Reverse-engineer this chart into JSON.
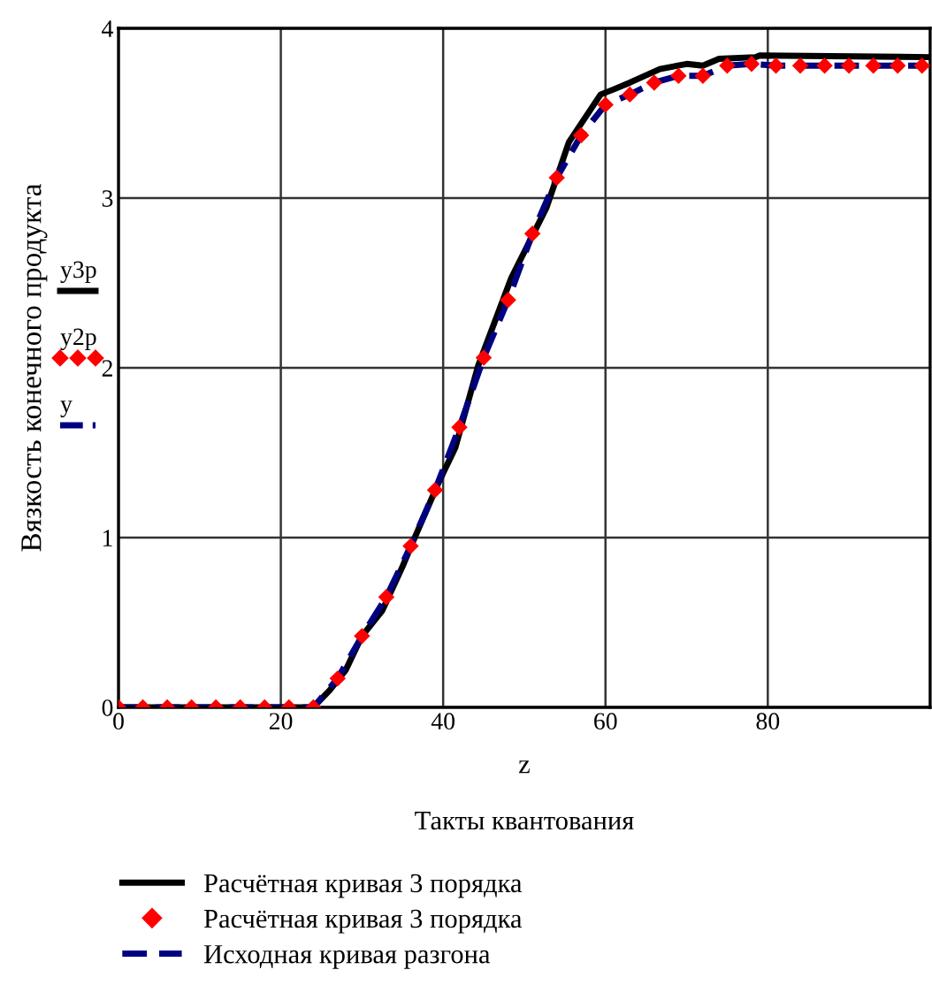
{
  "chart_data": {
    "type": "line",
    "xlabel": "z\n\nТакты квантования",
    "ylabel": "Вязкость конечного продукта",
    "annotations": [
      "y3p",
      "y2p",
      "y"
    ],
    "xlim": [
      0,
      100
    ],
    "xticks": [
      0,
      20,
      40,
      60,
      80
    ],
    "ylim": [
      0,
      4
    ],
    "yticks": [
      0,
      1,
      2,
      3,
      4
    ],
    "grid": true,
    "legend": "bottom",
    "series": [
      {
        "name": "Расчётная кривая 3 порядка",
        "color": "#000000",
        "line_style": "solid",
        "marker": "none",
        "x": [
          0,
          24,
          26,
          28,
          30,
          32.5,
          35,
          36.5,
          39.4,
          41.5,
          44.3,
          48.4,
          52.7,
          55.5,
          59.4,
          61,
          63,
          66.7,
          70,
          72,
          74,
          78.5,
          79,
          100
        ],
        "values": [
          0,
          0,
          0.1,
          0.22,
          0.42,
          0.57,
          0.83,
          1.0,
          1.32,
          1.53,
          2.01,
          2.53,
          2.94,
          3.33,
          3.61,
          3.64,
          3.68,
          3.76,
          3.79,
          3.78,
          3.82,
          3.83,
          3.84,
          3.83
        ]
      },
      {
        "name": "Расчётная кривая 3 порядка",
        "color": "#ff0000",
        "type": "scatter",
        "marker": "diamond",
        "x": [
          0,
          3,
          6,
          9,
          12,
          15,
          18,
          21,
          24,
          27,
          30,
          33,
          36,
          39,
          42,
          45,
          48,
          51,
          54,
          57,
          60,
          63,
          66,
          69,
          72,
          75,
          78,
          81,
          84,
          87,
          90,
          93,
          96,
          99
        ],
        "values": [
          0,
          0,
          0,
          0,
          0,
          0,
          0,
          0,
          0,
          0.17,
          0.42,
          0.65,
          0.95,
          1.28,
          1.65,
          2.06,
          2.4,
          2.79,
          3.12,
          3.37,
          3.55,
          3.61,
          3.68,
          3.72,
          3.72,
          3.78,
          3.79,
          3.78,
          3.78,
          3.78,
          3.78,
          3.78,
          3.78,
          3.78
        ]
      },
      {
        "name": "Исходная кривая разгона",
        "color": "#000080",
        "line_style": "dashed",
        "marker": "none",
        "x": [
          0,
          3,
          6,
          9,
          12,
          15,
          18,
          21,
          24,
          27,
          30,
          33,
          36,
          39,
          42,
          45,
          48,
          51,
          54,
          57,
          60,
          63,
          66,
          69,
          72,
          75,
          78,
          81,
          84,
          87,
          90,
          93,
          96,
          99
        ],
        "values": [
          0,
          0,
          0,
          0,
          0,
          0,
          0,
          0,
          0,
          0.17,
          0.42,
          0.65,
          0.95,
          1.28,
          1.65,
          2.06,
          2.4,
          2.79,
          3.12,
          3.37,
          3.55,
          3.61,
          3.68,
          3.72,
          3.72,
          3.78,
          3.79,
          3.78,
          3.78,
          3.78,
          3.78,
          3.78,
          3.78,
          3.78
        ]
      }
    ]
  }
}
